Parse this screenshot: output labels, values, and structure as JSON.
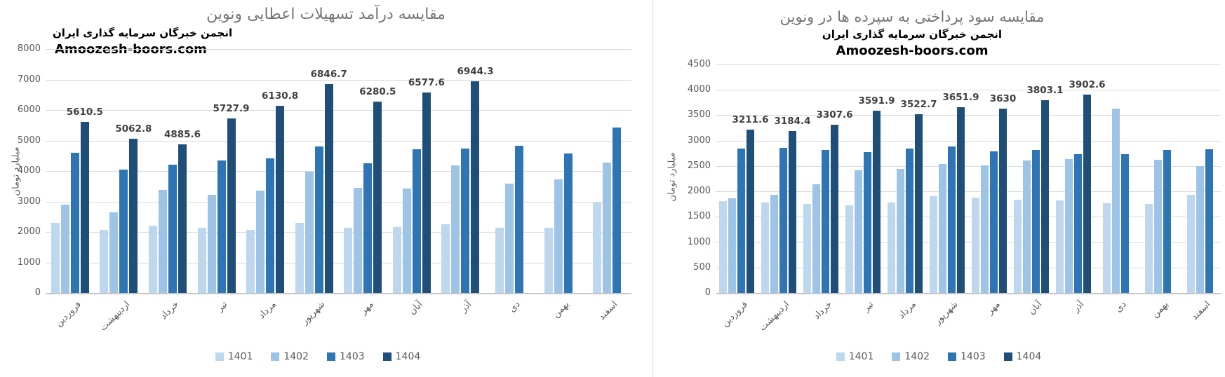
{
  "divider_color": "#d9d9d9",
  "series_colors": {
    "1401": "#BDD7EE",
    "1402": "#9DC3E6",
    "1403": "#2E75B6",
    "1404": "#1F4E79"
  },
  "chart_data": [
    {
      "type": "bar",
      "title": "مقایسه درآمد تسهیلات اعطایی  ونوین",
      "subtitle": "انجمن خبرگان سرمایه گذاری ایران",
      "watermark": "Amoozesh-boors.com",
      "ylabel": "میلیارد تومان",
      "ylim": [
        0,
        8000
      ],
      "ytick_step": 1000,
      "grid": true,
      "legend_position": "bottom",
      "categories": [
        "فروردین",
        "اردیبهشت",
        "خرداد",
        "تیر",
        "مرداد",
        "شهریور",
        "مهر",
        "آبان",
        "آذر",
        "دی",
        "بهمن",
        "اسفند"
      ],
      "series": [
        {
          "name": "1401",
          "color": "#BDD7EE",
          "values": [
            2310,
            2080,
            2210,
            2140,
            2060,
            2290,
            2130,
            2170,
            2250,
            2140,
            2150,
            2970
          ]
        },
        {
          "name": "1402",
          "color": "#9DC3E6",
          "values": [
            2900,
            2640,
            3370,
            3220,
            3350,
            3980,
            3450,
            3430,
            4180,
            3580,
            3720,
            4270
          ]
        },
        {
          "name": "1403",
          "color": "#2E75B6",
          "values": [
            4600,
            4050,
            4210,
            4350,
            4420,
            4800,
            4250,
            4710,
            4740,
            4830,
            4570,
            5420
          ]
        },
        {
          "name": "1404",
          "color": "#1F4E79",
          "show_labels": true,
          "values": [
            5610.5,
            5062.8,
            4885.6,
            5727.9,
            6130.8,
            6846.7,
            6280.5,
            6577.6,
            6944.3,
            null,
            null,
            null
          ]
        }
      ]
    },
    {
      "type": "bar",
      "title": "مقایسه سود پرداختی به سپرده ها در ونوین",
      "subtitle": "انجمن خبرگان سرمایه گذاری ایران",
      "watermark": "Amoozesh-boors.com",
      "ylabel": "میلیارد تومان",
      "ylim": [
        0,
        4500
      ],
      "ytick_step": 500,
      "grid": true,
      "legend_position": "bottom",
      "categories": [
        "فروردین",
        "اردیبهشت",
        "خرداد",
        "تیر",
        "مرداد",
        "شهریور",
        "مهر",
        "آبان",
        "آذر",
        "دی",
        "بهمن",
        "اسفند"
      ],
      "series": [
        {
          "name": "1401",
          "color": "#BDD7EE",
          "values": [
            1810,
            1780,
            1760,
            1730,
            1780,
            1910,
            1880,
            1840,
            1820,
            1770,
            1760,
            1940
          ]
        },
        {
          "name": "1402",
          "color": "#9DC3E6",
          "values": [
            1860,
            1940,
            2140,
            2410,
            2440,
            2540,
            2510,
            2610,
            2640,
            3630,
            2630,
            2500
          ]
        },
        {
          "name": "1403",
          "color": "#2E75B6",
          "values": [
            2840,
            2860,
            2820,
            2780,
            2850,
            2890,
            2790,
            2810,
            2730,
            2730,
            2810,
            2830
          ]
        },
        {
          "name": "1404",
          "color": "#1F4E79",
          "show_labels": true,
          "values": [
            3211.6,
            3184.4,
            3307.6,
            3591.9,
            3522.7,
            3651.9,
            3630,
            3803.1,
            3902.6,
            null,
            null,
            null
          ]
        }
      ]
    }
  ]
}
